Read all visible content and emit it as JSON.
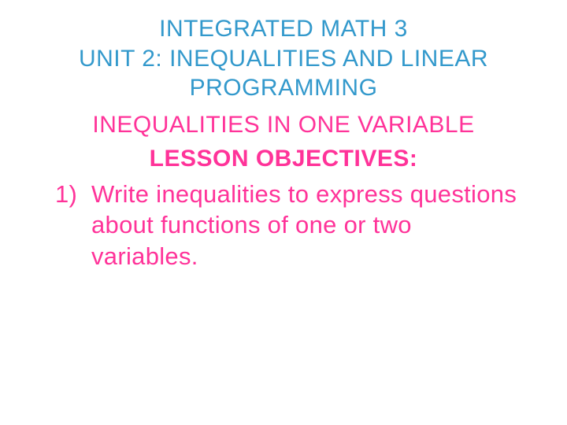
{
  "colors": {
    "title": "#3399cc",
    "body": "#ff3399",
    "background": "#ffffff"
  },
  "typography": {
    "title_fontsize_pt": 30,
    "subtitle_fontsize_pt": 30,
    "heading_fontsize_pt": 30,
    "objective_fontsize_pt": 31,
    "heading_weight": "bold",
    "font_family": "Century Gothic"
  },
  "title": {
    "line1": "INTEGRATED MATH 3",
    "line2": "UNIT 2:  INEQUALITIES AND LINEAR PROGRAMMING"
  },
  "subtitle": "INEQUALITIES IN ONE VARIABLE",
  "lesson_heading": "LESSON OBJECTIVES:",
  "objectives": [
    {
      "num": "1)",
      "text": "Write inequalities to express questions about functions of one or two variables."
    }
  ]
}
